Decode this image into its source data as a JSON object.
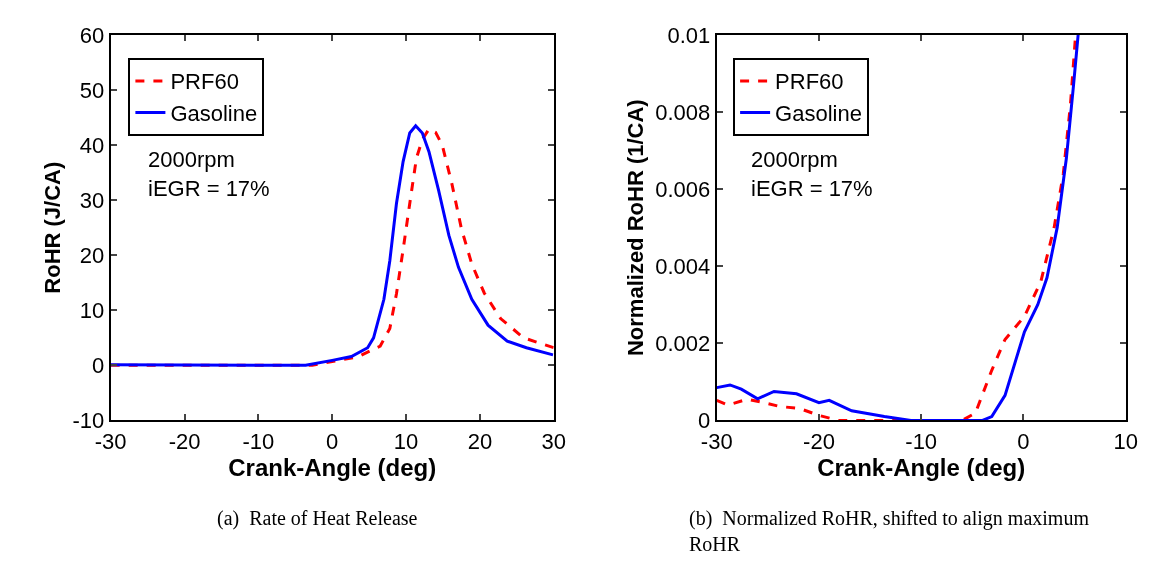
{
  "chart_data": [
    {
      "type": "line",
      "xlabel": "Crank-Angle (deg)",
      "ylabel": "RoHR (J/CA)",
      "xlim": [
        -30,
        30
      ],
      "xticks": [
        -30,
        -20,
        -10,
        0,
        10,
        20,
        30
      ],
      "ylim": [
        -10,
        60
      ],
      "yticks": [
        -10,
        0,
        10,
        20,
        30,
        40,
        50,
        60
      ],
      "legend": "top left",
      "annotations": [
        "2000rpm\niEGR = 17%",
        "(a)  Rate of Heat Release"
      ],
      "series": [
        {
          "name": "PRF60",
          "color": "#ff0000",
          "line_style": "dashed",
          "x": [
            -30,
            -2.7,
            0,
            3.4,
            6.5,
            7.8,
            8.7,
            9.6,
            10.5,
            11.4,
            12.2,
            13.1,
            14,
            14.9,
            16.2,
            17.5,
            18.9,
            20.6,
            22.8,
            25.9,
            30
          ],
          "values": [
            0,
            0,
            0.7,
            1.5,
            3.5,
            6.7,
            13,
            21,
            29.4,
            37.6,
            41,
            42.9,
            42.3,
            40,
            33,
            24.8,
            18.4,
            13.1,
            8.5,
            5,
            3.2
          ]
        },
        {
          "name": "Gasoline",
          "color": "#0000ff",
          "line_style": "solid",
          "x": [
            -30,
            -3.6,
            0,
            2.6,
            4.8,
            5.6,
            7,
            7.8,
            8.7,
            9.6,
            10.5,
            11.3,
            12.2,
            13.1,
            14.4,
            15.8,
            17.1,
            18.9,
            21.1,
            23.7,
            26.3,
            29.9
          ],
          "values": [
            0.1,
            0,
            0.9,
            1.6,
            3.2,
            5,
            12,
            19,
            29.4,
            37,
            42.2,
            43.5,
            42.2,
            38.8,
            31.8,
            23.6,
            17.8,
            12,
            7.3,
            4.4,
            3.2,
            1.9
          ]
        }
      ]
    },
    {
      "type": "line",
      "xlabel": "Crank-Angle (deg)",
      "ylabel": "Normalized RoHR (1/CA)",
      "xlim": [
        -30,
        10
      ],
      "xticks": [
        -30,
        -20,
        -10,
        0,
        10
      ],
      "ylim": [
        0,
        0.01
      ],
      "yticks": [
        0,
        0.002,
        0.004,
        0.006,
        0.008,
        0.01
      ],
      "legend": "top left",
      "annotations": [
        "2000rpm\niEGR = 17%",
        "(b)  Normalized RoHR, shifted to align maximum\nRoHR"
      ],
      "series": [
        {
          "name": "PRF60",
          "color": "#ff0000",
          "line_style": "dashed",
          "x": [
            -30,
            -28.9,
            -27,
            -25.7,
            -23.8,
            -21.9,
            -20,
            -18.1,
            -16.1,
            -6,
            -4.7,
            -3.1,
            -1.8,
            0.1,
            1.7,
            3,
            3.9,
            4.6,
            5.1
          ],
          "values": [
            0.00052,
            0.0004,
            0.00055,
            0.00048,
            0.00036,
            0.00031,
            0.00013,
            0,
            0,
            0,
            0.00019,
            0.0013,
            0.0021,
            0.0027,
            0.0036,
            0.005,
            0.0064,
            0.0082,
            0.01
          ]
        },
        {
          "name": "Gasoline",
          "color": "#0000ff",
          "line_style": "solid",
          "x": [
            -30,
            -28.7,
            -27.6,
            -26,
            -24.4,
            -22.2,
            -20,
            -19,
            -16.8,
            -13.6,
            -11,
            -4,
            -3.1,
            -1.8,
            0.1,
            1.4,
            2.3,
            3.3,
            4.2,
            4.9,
            5.35
          ],
          "values": [
            0.00085,
            0.00092,
            0.00081,
            0.00056,
            0.00075,
            0.00069,
            0.00046,
            0.00052,
            0.00025,
            0.0001,
            0,
            0,
            0.0001,
            0.00065,
            0.0023,
            0.003,
            0.0037,
            0.005,
            0.0068,
            0.0087,
            0.01
          ]
        }
      ]
    }
  ]
}
